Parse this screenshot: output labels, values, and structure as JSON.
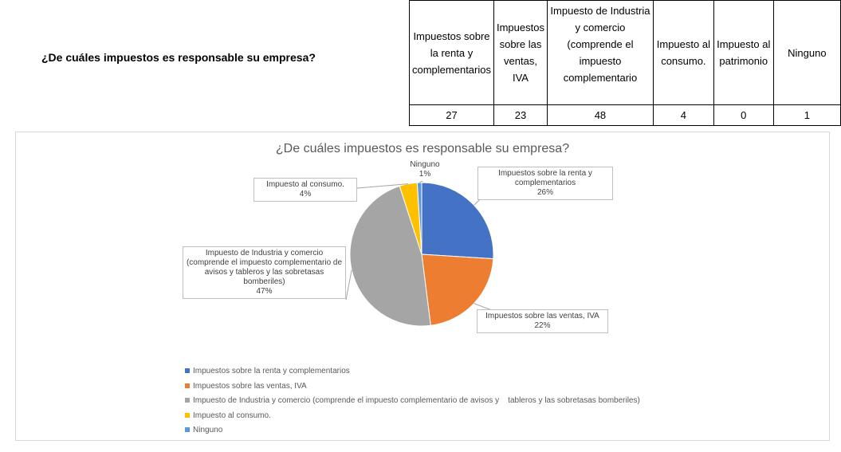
{
  "table": {
    "question": "¿De cuáles impuestos es responsable su empresa?",
    "headers": [
      "Impuestos sobre la renta y complementarios",
      "Impuestos sobre las ventas, IVA",
      "Impuesto de Industria y comercio (comprende el impuesto complementario",
      "Impuesto al consumo.",
      "Impuesto al patrimonio",
      "Ninguno"
    ],
    "values": [
      "27",
      "23",
      "48",
      "4",
      "0",
      "1"
    ]
  },
  "chart_data": {
    "type": "pie",
    "title": "¿De cuáles impuestos es responsable su empresa?",
    "categories": [
      "Impuestos sobre la renta y complementarios",
      "Impuestos sobre las ventas, IVA",
      "Impuesto de Industria y comercio (comprende el impuesto complementario de avisos y    tableros y las sobretasas bomberiles)",
      "Impuesto al consumo.",
      "Ninguno"
    ],
    "values": [
      26,
      22,
      47,
      4,
      1
    ],
    "value_labels": [
      "26%",
      "22%",
      "47%",
      "4%",
      "1%"
    ],
    "colors": [
      "#4472c4",
      "#ed7d31",
      "#a5a5a5",
      "#ffc000",
      "#5b9bd5"
    ],
    "legend": "bottom-left"
  }
}
